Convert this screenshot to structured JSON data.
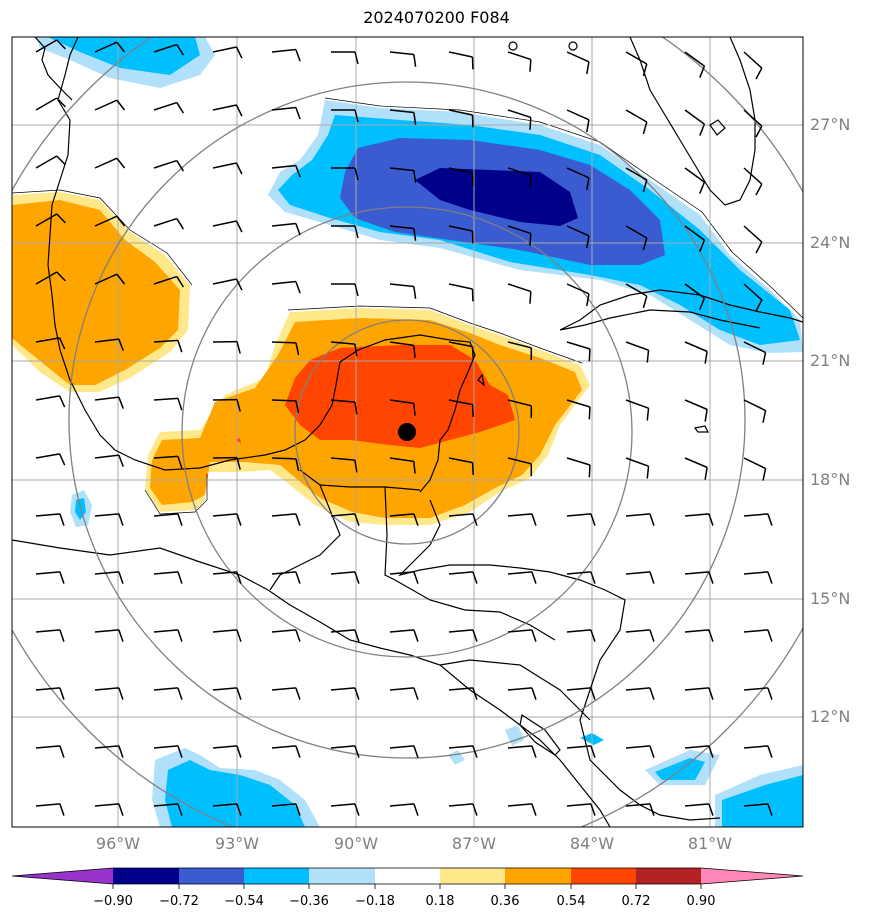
{
  "title": "2024070200 F084",
  "latitude_labels": [
    "27°N",
    "24°N",
    "21°N",
    "18°N",
    "15°N",
    "12°N"
  ],
  "longitude_labels": [
    "96°W",
    "93°W",
    "90°W",
    "87°W",
    "84°W",
    "81°W"
  ],
  "colorbar": {
    "tick_labels": [
      "−0.90",
      "−0.72",
      "−0.54",
      "−0.36",
      "−0.18",
      "0.18",
      "0.36",
      "0.54",
      "0.72",
      "0.90"
    ],
    "colors": [
      "#9933cc",
      "#00008b",
      "#3b5bd1",
      "#00bfff",
      "#b0e0fa",
      "#ffffff",
      "#ffe88a",
      "#ffa500",
      "#ff4500",
      "#b22222",
      "#ff88b8"
    ]
  },
  "fill_colors": {
    "neg_light": "#b0e0fa",
    "neg_mid": "#00bfff",
    "neg_strong": "#3b5bd1",
    "neg_max": "#00008b",
    "pos_light": "#ffe88a",
    "pos_mid": "#ffa500",
    "pos_strong": "#ff4500"
  },
  "storm_center": {
    "lat": 19.2,
    "lon": -88.3
  }
}
